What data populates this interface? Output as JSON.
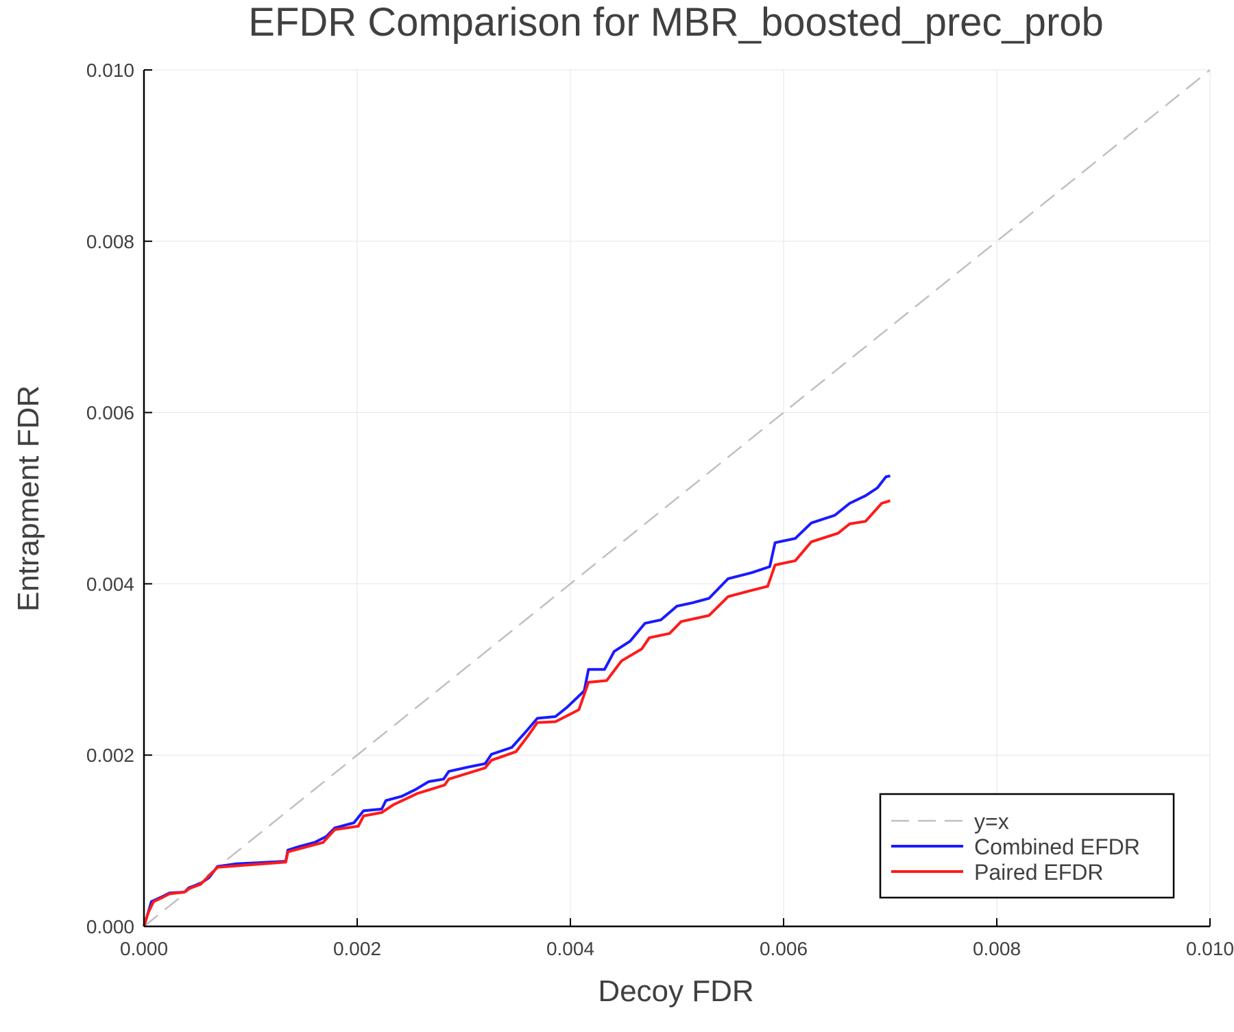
{
  "chart_data": {
    "type": "line",
    "title": "EFDR Comparison for MBR_boosted_prec_prob",
    "xlabel": "Decoy FDR",
    "ylabel": "Entrapment FDR",
    "xlim": [
      0,
      0.01
    ],
    "ylim": [
      0,
      0.01
    ],
    "xticks": [
      "0.000",
      "0.002",
      "0.004",
      "0.006",
      "0.008",
      "0.010"
    ],
    "yticks": [
      "0.000",
      "0.002",
      "0.004",
      "0.006",
      "0.008",
      "0.010"
    ],
    "grid": true,
    "legend_position": "bottom-right",
    "series": [
      {
        "name": "y=x",
        "color": "#c0c0c0",
        "style": "dashed",
        "x": [
          0,
          0.01
        ],
        "y": [
          0,
          0.01
        ]
      },
      {
        "name": "Combined EFDR",
        "color": "#1a1aff",
        "style": "solid",
        "x": [
          0,
          7e-05,
          0.00016,
          0.00024,
          0.00038,
          0.00042,
          0.00053,
          0.00061,
          0.00069,
          0.00086,
          0.00101,
          0.00133,
          0.00135,
          0.00145,
          0.0016,
          0.00171,
          0.00179,
          0.00197,
          0.00206,
          0.00223,
          0.00227,
          0.00242,
          0.00255,
          0.00267,
          0.00281,
          0.00286,
          0.00304,
          0.0032,
          0.00326,
          0.00345,
          0.00358,
          0.00369,
          0.00386,
          0.00397,
          0.00413,
          0.00417,
          0.00432,
          0.00441,
          0.00456,
          0.0047,
          0.00485,
          0.005,
          0.00515,
          0.0053,
          0.00548,
          0.0057,
          0.00587,
          0.00592,
          0.00611,
          0.00626,
          0.00648,
          0.00662,
          0.00677,
          0.00688,
          0.00696,
          0.007
        ],
        "y": [
          0,
          0.00029,
          0.00034,
          0.00039,
          0.0004,
          0.00045,
          0.0005,
          0.00057,
          0.0007,
          0.00073,
          0.00074,
          0.00076,
          0.00089,
          0.00093,
          0.00098,
          0.00105,
          0.00115,
          0.00121,
          0.00135,
          0.00137,
          0.00147,
          0.00152,
          0.0016,
          0.00169,
          0.00172,
          0.00181,
          0.00186,
          0.0019,
          0.00201,
          0.00209,
          0.00227,
          0.00243,
          0.00245,
          0.00256,
          0.00275,
          0.003,
          0.003,
          0.00321,
          0.00333,
          0.00354,
          0.00358,
          0.00374,
          0.00378,
          0.00383,
          0.00406,
          0.00413,
          0.0042,
          0.00448,
          0.00453,
          0.00471,
          0.0048,
          0.00494,
          0.00503,
          0.00512,
          0.00525,
          0.00526
        ]
      },
      {
        "name": "Paired EFDR",
        "color": "#ff1a1a",
        "style": "solid",
        "x": [
          0,
          4e-05,
          9e-05,
          0.00016,
          0.00024,
          0.00038,
          0.00042,
          0.00053,
          0.00069,
          0.00133,
          0.00135,
          0.00168,
          0.00179,
          0.00201,
          0.00206,
          0.00223,
          0.00234,
          0.00256,
          0.00282,
          0.00286,
          0.0032,
          0.00326,
          0.00349,
          0.0036,
          0.00369,
          0.00386,
          0.00408,
          0.00417,
          0.00434,
          0.00448,
          0.00467,
          0.00474,
          0.00493,
          0.00504,
          0.0053,
          0.00548,
          0.00566,
          0.00585,
          0.00592,
          0.00611,
          0.00626,
          0.00651,
          0.00662,
          0.00677,
          0.00692,
          0.007
        ],
        "y": [
          0,
          0.00016,
          0.00029,
          0.00033,
          0.00038,
          0.0004,
          0.00044,
          0.00049,
          0.00069,
          0.00075,
          0.00087,
          0.00098,
          0.00113,
          0.00117,
          0.00129,
          0.00133,
          0.00142,
          0.00155,
          0.00165,
          0.00172,
          0.00185,
          0.00194,
          0.00204,
          0.00222,
          0.00238,
          0.00239,
          0.00253,
          0.00285,
          0.00287,
          0.0031,
          0.00324,
          0.00337,
          0.00342,
          0.00356,
          0.00363,
          0.00385,
          0.00391,
          0.00397,
          0.00422,
          0.00427,
          0.00449,
          0.00459,
          0.0047,
          0.00473,
          0.00494,
          0.00497
        ]
      }
    ]
  }
}
